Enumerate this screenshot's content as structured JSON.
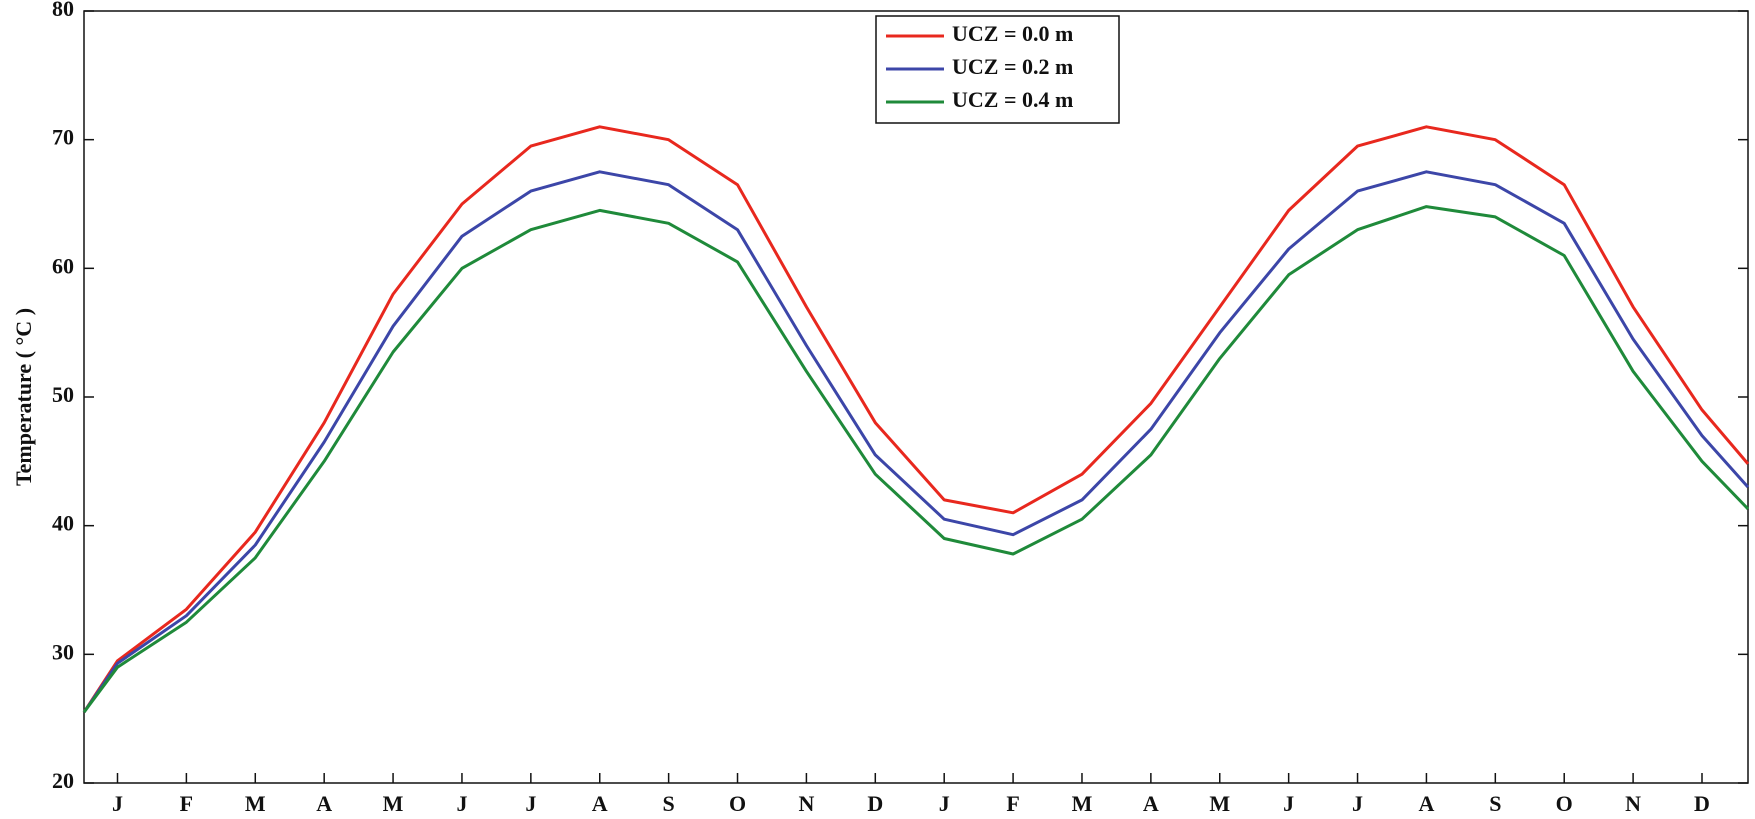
{
  "chart_data": {
    "type": "line",
    "ylabel": "Temperature ( °C )",
    "categories": [
      null,
      "J",
      "F",
      "M",
      "A",
      "M",
      "J",
      "J",
      "A",
      "S",
      "O",
      "N",
      "D",
      "J",
      "F",
      "M",
      "A",
      "M",
      "J",
      "J",
      "A",
      "S",
      "O",
      "N",
      "D",
      null
    ],
    "series": [
      {
        "name": "UCZ = 0.0 m",
        "color": "#e8281e",
        "values": [
          25.5,
          29.5,
          33.5,
          39.5,
          48,
          58,
          65,
          69.5,
          71,
          70,
          66.5,
          57,
          48,
          42,
          41,
          44,
          49.5,
          57,
          64.5,
          69.5,
          71,
          70,
          66.5,
          57,
          49,
          44.8
        ]
      },
      {
        "name": "UCZ = 0.2 m",
        "color": "#3c46a8",
        "values": [
          25.5,
          29.3,
          33,
          38.5,
          46.5,
          55.5,
          62.5,
          66,
          67.5,
          66.5,
          63,
          54,
          45.5,
          40.5,
          39.3,
          42,
          47.5,
          55,
          61.5,
          66,
          67.5,
          66.5,
          63.5,
          54.5,
          47,
          43
        ]
      },
      {
        "name": "UCZ = 0.4 m",
        "color": "#1f8a3a",
        "values": [
          25.5,
          29,
          32.5,
          37.5,
          45,
          53.5,
          60,
          63,
          64.5,
          63.5,
          60.5,
          52,
          44,
          39,
          37.8,
          40.5,
          45.5,
          53,
          59.5,
          63,
          64.8,
          64,
          61,
          52,
          45,
          41.3
        ]
      }
    ],
    "ylim": [
      20,
      80
    ],
    "yticks": [
      20,
      30,
      40,
      50,
      60,
      70,
      80
    ],
    "legend": "upper center"
  }
}
